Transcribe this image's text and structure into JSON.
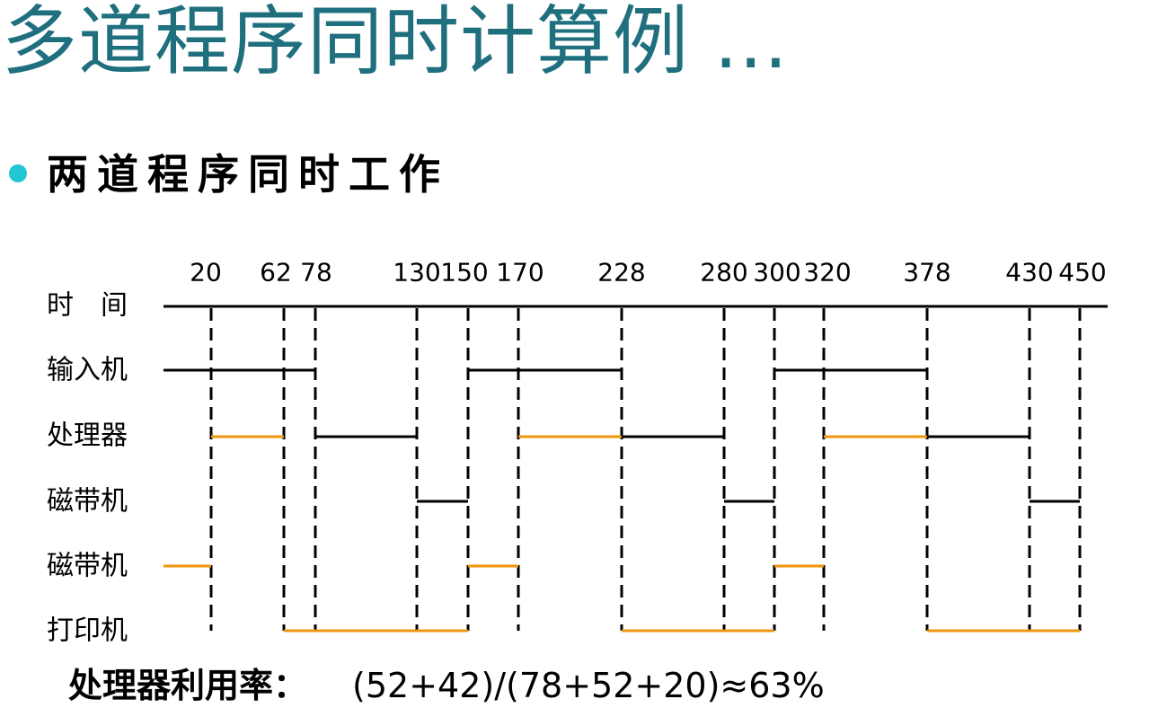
{
  "title": "多道程序同时计算例 ...",
  "bullet": "两道程序同时工作",
  "colors": {
    "title": "#1f6f7f",
    "bullet_dot": "#22c7d3",
    "program_a": "#000000",
    "program_b": "#f0960e"
  },
  "rows": [
    {
      "id": "time",
      "label": "时　间"
    },
    {
      "id": "input",
      "label": "输入机"
    },
    {
      "id": "cpu",
      "label": "处理器"
    },
    {
      "id": "tape1",
      "label": "磁带机"
    },
    {
      "id": "tape2",
      "label": "磁带机"
    },
    {
      "id": "printer",
      "label": "打印机"
    }
  ],
  "time_ticks": [
    "20",
    "62",
    "78",
    "130",
    "150",
    "170",
    "228",
    "280",
    "300",
    "320",
    "378",
    "430",
    "450"
  ],
  "events": [
    0,
    20,
    62,
    78,
    130,
    150,
    170,
    228,
    280,
    300,
    320,
    378,
    430,
    450
  ],
  "segments": [
    {
      "row": "input",
      "program": "A",
      "start": 0,
      "end": 78
    },
    {
      "row": "input",
      "program": "A",
      "start": 150,
      "end": 228
    },
    {
      "row": "input",
      "program": "A",
      "start": 300,
      "end": 378
    },
    {
      "row": "cpu",
      "program": "B",
      "start": 20,
      "end": 62
    },
    {
      "row": "cpu",
      "program": "A",
      "start": 78,
      "end": 130
    },
    {
      "row": "cpu",
      "program": "B",
      "start": 170,
      "end": 228
    },
    {
      "row": "cpu",
      "program": "A",
      "start": 228,
      "end": 280
    },
    {
      "row": "cpu",
      "program": "B",
      "start": 320,
      "end": 378
    },
    {
      "row": "cpu",
      "program": "A",
      "start": 378,
      "end": 430
    },
    {
      "row": "tape1",
      "program": "A",
      "start": 130,
      "end": 150
    },
    {
      "row": "tape1",
      "program": "A",
      "start": 280,
      "end": 300
    },
    {
      "row": "tape1",
      "program": "A",
      "start": 430,
      "end": 450
    },
    {
      "row": "tape2",
      "program": "B",
      "start": 0,
      "end": 20
    },
    {
      "row": "tape2",
      "program": "B",
      "start": 150,
      "end": 170
    },
    {
      "row": "tape2",
      "program": "B",
      "start": 300,
      "end": 320
    },
    {
      "row": "printer",
      "program": "B",
      "start": 62,
      "end": 150
    },
    {
      "row": "printer",
      "program": "B",
      "start": 228,
      "end": 300
    },
    {
      "row": "printer",
      "program": "B",
      "start": 378,
      "end": 450
    }
  ],
  "formula": {
    "label": "处理器利用率：",
    "expression": "(52+42)/(78+52+20)≈63%"
  }
}
